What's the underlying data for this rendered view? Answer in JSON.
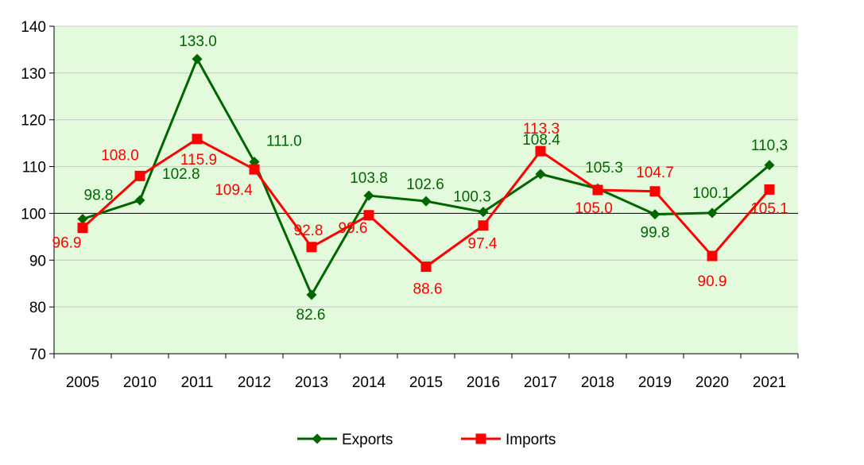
{
  "chart_data": {
    "type": "line",
    "categories": [
      "2005",
      "2010",
      "2011",
      "2012",
      "2013",
      "2014",
      "2015",
      "2016",
      "2017",
      "2018",
      "2019",
      "2020",
      "2021"
    ],
    "ylim": [
      70,
      140
    ],
    "yticks": [
      70,
      80,
      90,
      100,
      110,
      120,
      130,
      140
    ],
    "grid": true,
    "legend_position": "bottom",
    "plot_background": "#e3fbdc",
    "series": [
      {
        "name": "Exports",
        "color": "#006600",
        "marker": "diamond",
        "values": [
          98.8,
          102.8,
          133.0,
          111.0,
          82.6,
          103.8,
          102.6,
          100.3,
          108.4,
          105.3,
          99.8,
          100.1,
          110.3
        ],
        "labels": [
          "98.8",
          "102.8",
          "133.0",
          "111.0",
          "82.6",
          "103.8",
          "102.6",
          "100.3",
          "108.4",
          "105.3",
          "99.8",
          "100.1",
          "110,3"
        ]
      },
      {
        "name": "Imports",
        "color": "#ff0000",
        "marker": "square",
        "values": [
          96.9,
          108.0,
          115.9,
          109.4,
          92.8,
          99.6,
          88.6,
          97.4,
          113.3,
          105.0,
          104.7,
          90.9,
          105.1
        ],
        "labels": [
          "96.9",
          "108.0",
          "115.9",
          "109.4",
          "92.8",
          "99.6",
          "88.6",
          "97.4",
          "113.3",
          "105.0",
          "104.7",
          "90.9",
          "105.1"
        ]
      }
    ]
  }
}
